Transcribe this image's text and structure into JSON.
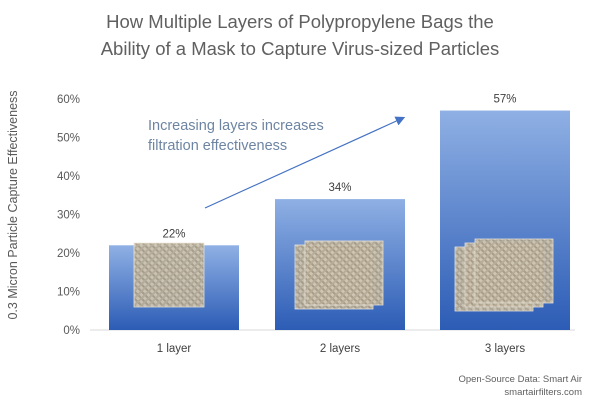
{
  "chart_data": {
    "type": "bar",
    "title": [
      "How Multiple Layers of Polypropylene Bags the",
      "Ability of a Mask to Capture Virus-sized Particles"
    ],
    "ylabel": "0.3 Micron Particle Capture Effectiveness",
    "xlabel": "",
    "categories": [
      "1 layer",
      "2 layers",
      "3 layers"
    ],
    "values": [
      22,
      34,
      57
    ],
    "data_labels": [
      "22%",
      "34%",
      "57%"
    ],
    "ylim": [
      0,
      60
    ],
    "yticks": [
      0,
      10,
      20,
      30,
      40,
      50,
      60
    ],
    "ytick_labels": [
      "0%",
      "10%",
      "20%",
      "30%",
      "40%",
      "50%",
      "60%"
    ],
    "grid": false,
    "legend": "none",
    "annotation": [
      "Increasing layers increases",
      "filtration effectiveness"
    ],
    "colors": {
      "bar_top": "#8fb0e4",
      "bar_bottom": "#2c5cb5",
      "annotation": "#6d85a3",
      "arrow": "#4472c4"
    }
  },
  "source": [
    "Open-Source Data: Smart Air",
    "smartairfilters.com"
  ]
}
